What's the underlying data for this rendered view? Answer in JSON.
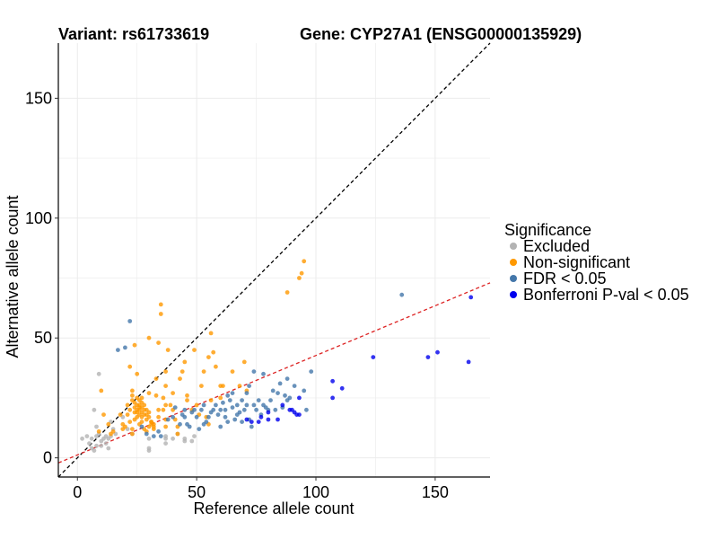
{
  "chart_data": {
    "type": "scatter",
    "title_variant": "Variant: rs61733619",
    "title_gene": "Gene: CYP27A1 (ENSG00000135929)",
    "xlabel": "Reference allele count",
    "ylabel": "Alternative allele count",
    "xlim": [
      -8,
      173
    ],
    "ylim": [
      -8,
      173
    ],
    "xticks": [
      0,
      50,
      100,
      150
    ],
    "yticks": [
      0,
      50,
      100,
      150
    ],
    "grid": true,
    "legend": {
      "title": "Significance",
      "position": "right",
      "entries": [
        {
          "key": "excluded",
          "label": "Excluded",
          "color": "#b3b3b3"
        },
        {
          "key": "nonsig",
          "label": "Non-significant",
          "color": "#ff9900"
        },
        {
          "key": "fdr",
          "label": "FDR < 0.05",
          "color": "#4477aa"
        },
        {
          "key": "bonf",
          "label": "Bonferroni P-val < 0.05",
          "color": "#0000ee"
        }
      ]
    },
    "reference_lines": [
      {
        "name": "identity",
        "slope": 1,
        "intercept": 0,
        "color": "#000000",
        "dash": "dashed"
      },
      {
        "name": "fit",
        "slope": 0.415,
        "intercept": 1.2,
        "color": "#dd2222",
        "dash": "dashed"
      }
    ],
    "series": [
      {
        "name": "Excluded",
        "key": "excluded",
        "color": "#b3b3b3",
        "points": [
          [
            2,
            8
          ],
          [
            4,
            9
          ],
          [
            5,
            6
          ],
          [
            6,
            8
          ],
          [
            6,
            4
          ],
          [
            7,
            3
          ],
          [
            7,
            20
          ],
          [
            8,
            5
          ],
          [
            8,
            9
          ],
          [
            8,
            13
          ],
          [
            9,
            10
          ],
          [
            9,
            35
          ],
          [
            10,
            5
          ],
          [
            10,
            7
          ],
          [
            11,
            8
          ],
          [
            12,
            6
          ],
          [
            12,
            9
          ],
          [
            13,
            8
          ],
          [
            13,
            4
          ],
          [
            14,
            9
          ],
          [
            14,
            15
          ],
          [
            15,
            12
          ],
          [
            16,
            10
          ],
          [
            19,
            17
          ],
          [
            21,
            12
          ],
          [
            23,
            10
          ],
          [
            30,
            4
          ],
          [
            30,
            3
          ],
          [
            30,
            8
          ],
          [
            37,
            9
          ],
          [
            37,
            8
          ],
          [
            37,
            6
          ],
          [
            40,
            8
          ],
          [
            42,
            10
          ],
          [
            45,
            7
          ],
          [
            45,
            8
          ],
          [
            48,
            7
          ],
          [
            49,
            9
          ]
        ]
      },
      {
        "name": "Non-significant",
        "key": "nonsig",
        "color": "#ff9900",
        "points": [
          [
            9,
            11
          ],
          [
            10,
            28
          ],
          [
            11,
            18
          ],
          [
            13,
            14
          ],
          [
            14,
            10
          ],
          [
            15,
            11
          ],
          [
            18,
            18
          ],
          [
            19,
            12
          ],
          [
            19,
            14
          ],
          [
            20,
            13
          ],
          [
            21,
            18
          ],
          [
            21,
            22
          ],
          [
            22,
            15
          ],
          [
            22,
            20
          ],
          [
            22,
            38
          ],
          [
            23,
            10
          ],
          [
            23,
            12
          ],
          [
            23,
            24
          ],
          [
            23,
            26
          ],
          [
            23,
            28
          ],
          [
            24,
            16
          ],
          [
            24,
            19
          ],
          [
            24,
            21
          ],
          [
            24,
            23
          ],
          [
            24,
            47
          ],
          [
            25,
            17
          ],
          [
            25,
            19
          ],
          [
            25,
            20
          ],
          [
            25,
            22
          ],
          [
            25,
            25
          ],
          [
            25,
            35
          ],
          [
            26,
            14
          ],
          [
            26,
            18
          ],
          [
            26,
            20
          ],
          [
            26,
            21
          ],
          [
            26,
            22
          ],
          [
            26,
            24
          ],
          [
            27,
            15
          ],
          [
            27,
            17
          ],
          [
            27,
            19
          ],
          [
            27,
            21
          ],
          [
            27,
            23
          ],
          [
            27,
            25
          ],
          [
            28,
            12
          ],
          [
            28,
            18
          ],
          [
            28,
            20
          ],
          [
            28,
            22
          ],
          [
            29,
            11
          ],
          [
            29,
            16
          ],
          [
            29,
            18
          ],
          [
            29,
            20
          ],
          [
            30,
            13
          ],
          [
            30,
            17
          ],
          [
            30,
            19
          ],
          [
            30,
            27
          ],
          [
            30,
            50
          ],
          [
            31,
            14
          ],
          [
            31,
            15
          ],
          [
            31,
            15
          ],
          [
            32,
            12
          ],
          [
            32,
            14
          ],
          [
            32,
            13
          ],
          [
            33,
            26
          ],
          [
            33,
            33
          ],
          [
            34,
            17
          ],
          [
            34,
            20
          ],
          [
            34,
            48
          ],
          [
            35,
            60
          ],
          [
            35,
            64
          ],
          [
            36,
            20
          ],
          [
            36,
            25
          ],
          [
            37,
            13
          ],
          [
            37,
            16
          ],
          [
            37,
            22
          ],
          [
            37,
            30
          ],
          [
            37,
            36
          ],
          [
            38,
            45
          ],
          [
            39,
            22
          ],
          [
            40,
            27
          ],
          [
            40,
            20
          ],
          [
            41,
            16
          ],
          [
            42,
            13
          ],
          [
            42,
            10
          ],
          [
            43,
            33
          ],
          [
            44,
            36
          ],
          [
            45,
            40
          ],
          [
            46,
            26
          ],
          [
            46,
            24
          ],
          [
            48,
            20
          ],
          [
            49,
            45
          ],
          [
            50,
            22
          ],
          [
            51,
            18
          ],
          [
            52,
            30
          ],
          [
            53,
            36
          ],
          [
            54,
            17
          ],
          [
            55,
            14
          ],
          [
            55,
            42
          ],
          [
            56,
            24
          ],
          [
            56,
            52
          ],
          [
            57,
            44
          ],
          [
            58,
            38
          ],
          [
            60,
            25
          ],
          [
            60,
            30
          ],
          [
            61,
            30
          ],
          [
            65,
            36
          ],
          [
            68,
            30
          ],
          [
            70,
            40
          ],
          [
            71,
            28
          ],
          [
            88,
            69
          ],
          [
            93,
            75
          ],
          [
            94,
            77
          ],
          [
            95,
            82
          ]
        ]
      },
      {
        "name": "FDR < 0.05",
        "key": "fdr",
        "color": "#4477aa",
        "points": [
          [
            22,
            57
          ],
          [
            17,
            45
          ],
          [
            20,
            46
          ],
          [
            27,
            13
          ],
          [
            29,
            10
          ],
          [
            32,
            9
          ],
          [
            34,
            11
          ],
          [
            35,
            9
          ],
          [
            38,
            16
          ],
          [
            40,
            17
          ],
          [
            41,
            21
          ],
          [
            43,
            14
          ],
          [
            44,
            18
          ],
          [
            45,
            17
          ],
          [
            45,
            20
          ],
          [
            46,
            14
          ],
          [
            47,
            13
          ],
          [
            48,
            19
          ],
          [
            49,
            20
          ],
          [
            50,
            17
          ],
          [
            51,
            12
          ],
          [
            52,
            20
          ],
          [
            53,
            14
          ],
          [
            53,
            22
          ],
          [
            54,
            15
          ],
          [
            55,
            17
          ],
          [
            56,
            19
          ],
          [
            57,
            20
          ],
          [
            58,
            22
          ],
          [
            59,
            18
          ],
          [
            60,
            13
          ],
          [
            60,
            20
          ],
          [
            61,
            23
          ],
          [
            62,
            17
          ],
          [
            62,
            20
          ],
          [
            63,
            26
          ],
          [
            63,
            15
          ],
          [
            64,
            24
          ],
          [
            65,
            21
          ],
          [
            65,
            27
          ],
          [
            66,
            16
          ],
          [
            67,
            18
          ],
          [
            67,
            22
          ],
          [
            68,
            19
          ],
          [
            69,
            15
          ],
          [
            69,
            24
          ],
          [
            70,
            20
          ],
          [
            71,
            22
          ],
          [
            71,
            27
          ],
          [
            72,
            16
          ],
          [
            72,
            30
          ],
          [
            73,
            13
          ],
          [
            74,
            22
          ],
          [
            74,
            36
          ],
          [
            75,
            20
          ],
          [
            76,
            24
          ],
          [
            77,
            18
          ],
          [
            78,
            22
          ],
          [
            78,
            35
          ],
          [
            79,
            21
          ],
          [
            80,
            20
          ],
          [
            81,
            24
          ],
          [
            82,
            28
          ],
          [
            83,
            20
          ],
          [
            84,
            27
          ],
          [
            85,
            31
          ],
          [
            86,
            21
          ],
          [
            87,
            26
          ],
          [
            88,
            24
          ],
          [
            88,
            33
          ],
          [
            89,
            25
          ],
          [
            91,
            30
          ],
          [
            95,
            28
          ],
          [
            96,
            20
          ],
          [
            98,
            36
          ],
          [
            136,
            68
          ]
        ]
      },
      {
        "name": "Bonferroni P-val < 0.05",
        "key": "bonf",
        "color": "#0000ee",
        "points": [
          [
            71,
            16
          ],
          [
            73,
            15
          ],
          [
            76,
            15
          ],
          [
            77,
            17
          ],
          [
            80,
            16
          ],
          [
            80,
            19
          ],
          [
            84,
            16
          ],
          [
            86,
            22
          ],
          [
            89,
            20
          ],
          [
            90,
            20
          ],
          [
            91,
            19
          ],
          [
            92,
            18
          ],
          [
            93,
            18
          ],
          [
            93,
            25
          ],
          [
            107,
            25
          ],
          [
            107,
            32
          ],
          [
            111,
            29
          ],
          [
            124,
            42
          ],
          [
            147,
            42
          ],
          [
            151,
            44
          ],
          [
            164,
            40
          ],
          [
            165,
            67
          ]
        ]
      }
    ]
  }
}
